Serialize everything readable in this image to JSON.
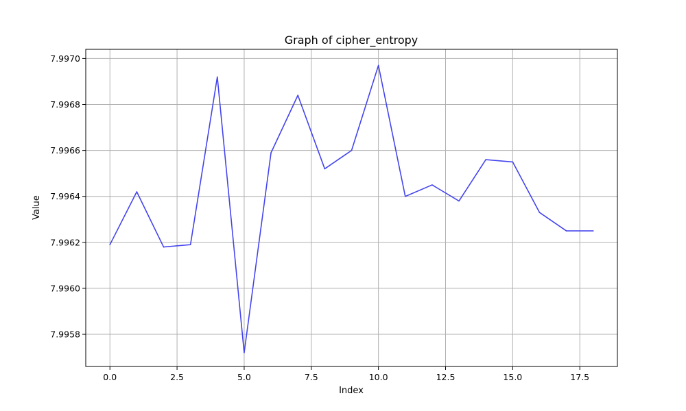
{
  "chart_data": {
    "type": "line",
    "title": "Graph of cipher_entropy",
    "xlabel": "Index",
    "ylabel": "Value",
    "xlim": [
      -0.9,
      18.9
    ],
    "ylim": [
      7.99566,
      7.99704
    ],
    "grid": true,
    "x_ticks": [
      0.0,
      2.5,
      5.0,
      7.5,
      10.0,
      12.5,
      15.0,
      17.5
    ],
    "x_tick_labels": [
      "0.0",
      "2.5",
      "5.0",
      "7.5",
      "10.0",
      "12.5",
      "15.0",
      "17.5"
    ],
    "y_ticks": [
      7.9958,
      7.996,
      7.9962,
      7.9964,
      7.9966,
      7.9968,
      7.997
    ],
    "y_tick_labels": [
      "7.9958",
      "7.9960",
      "7.9962",
      "7.9964",
      "7.9966",
      "7.9968",
      "7.9970"
    ],
    "series": [
      {
        "color": "#4444ee",
        "x": [
          0,
          1,
          2,
          3,
          4,
          5,
          6,
          7,
          8,
          9,
          10,
          11,
          12,
          13,
          14,
          15,
          16,
          17,
          18
        ],
        "y": [
          7.99619,
          7.99642,
          7.99618,
          7.99619,
          7.99692,
          7.99572,
          7.99659,
          7.99684,
          7.99652,
          7.9966,
          7.99697,
          7.9964,
          7.99645,
          7.99638,
          7.99656,
          7.99655,
          7.99633,
          7.99625,
          7.99625
        ]
      }
    ]
  }
}
